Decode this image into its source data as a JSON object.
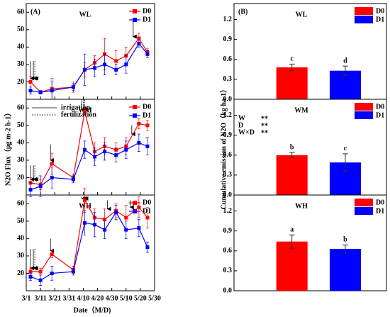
{
  "chart_data": [
    {
      "type": "line",
      "panel_label": "(A)",
      "title": "WL",
      "xlim": [
        0,
        90
      ],
      "ylim": [
        10,
        65
      ],
      "yticks": [
        20,
        30,
        40,
        50,
        60
      ],
      "x": [
        3,
        10,
        18,
        33,
        41,
        48,
        55,
        63,
        70,
        79,
        85
      ],
      "series": [
        {
          "name": "D0",
          "color": "#ff0000",
          "values": [
            20,
            14,
            16,
            17,
            27,
            31,
            36,
            32,
            35,
            45,
            37
          ],
          "errors": [
            3,
            1,
            6,
            3,
            4,
            4,
            9,
            6,
            5,
            3,
            2
          ]
        },
        {
          "name": "D1",
          "color": "#0000ff",
          "values": [
            15,
            14,
            15,
            17,
            27,
            28,
            30,
            27,
            30,
            42,
            36
          ],
          "errors": [
            2,
            1,
            5,
            2,
            9,
            5,
            6,
            3,
            5,
            2,
            2
          ]
        }
      ],
      "irrigation": [
        [
          3,
          32,
          22
        ],
        [
          5,
          32,
          22
        ],
        [
          75,
          55,
          46
        ]
      ],
      "fertilization": [
        [
          6,
          32,
          22
        ]
      ]
    },
    {
      "type": "line",
      "title": "WM",
      "ylabel": "N2O Flux（μg m-2 h-1）",
      "irrigation_label": "irrigation",
      "fertilization_label": "fertilization",
      "xlim": [
        0,
        90
      ],
      "ylim": [
        10,
        65
      ],
      "yticks": [
        20,
        30,
        40,
        50,
        60
      ],
      "x": [
        3,
        10,
        18,
        33,
        41,
        48,
        55,
        63,
        70,
        79,
        85
      ],
      "series": [
        {
          "name": "D0",
          "color": "#ff0000",
          "values": [
            17,
            16,
            28,
            20,
            58,
            35,
            38,
            36,
            38,
            51,
            50
          ],
          "errors": [
            3,
            3,
            6,
            2,
            2,
            5,
            5,
            4,
            5,
            3,
            3
          ]
        },
        {
          "name": "D1",
          "color": "#0000ff",
          "values": [
            13,
            15,
            20,
            19,
            36,
            32,
            35,
            33,
            36,
            40,
            38
          ],
          "errors": [
            4,
            6,
            6,
            2,
            5,
            5,
            5,
            4,
            5,
            5,
            5
          ]
        }
      ],
      "irrigation": [
        [
          3,
          27,
          19
        ],
        [
          5,
          27,
          19
        ],
        [
          17,
          39,
          30
        ],
        [
          39,
          65,
          59
        ],
        [
          74,
          50,
          45
        ]
      ],
      "fertilization": [
        [
          6,
          27,
          19
        ],
        [
          40,
          65,
          59
        ],
        [
          41,
          65,
          59
        ]
      ]
    },
    {
      "type": "line",
      "title": "WH",
      "xlabel": "Date（M/D)",
      "xlim": [
        0,
        90
      ],
      "ylim": [
        10,
        65
      ],
      "yticks": [
        20,
        30,
        40,
        50,
        60
      ],
      "xticks": [
        {
          "value": 0,
          "label": "3/1"
        },
        {
          "value": 10,
          "label": "3/11"
        },
        {
          "value": 20,
          "label": "3/21"
        },
        {
          "value": 30,
          "label": "3/31"
        },
        {
          "value": 40,
          "label": "4/10"
        },
        {
          "value": 50,
          "label": "4/20"
        },
        {
          "value": 60,
          "label": "4/30"
        },
        {
          "value": 70,
          "label": "5/10"
        },
        {
          "value": 80,
          "label": "5/20"
        },
        {
          "value": 90,
          "label": "5/30"
        }
      ],
      "x": [
        3,
        10,
        18,
        33,
        41,
        48,
        55,
        63,
        70,
        79,
        85
      ],
      "series": [
        {
          "name": "D0",
          "color": "#ff0000",
          "values": [
            21,
            21,
            31,
            22,
            62,
            52,
            51,
            56,
            52,
            58,
            52
          ],
          "errors": [
            2,
            2,
            2,
            2,
            7,
            5,
            6,
            4,
            7,
            6,
            6
          ]
        },
        {
          "name": "D1",
          "color": "#0000ff",
          "values": [
            18,
            16,
            20,
            21,
            49,
            48,
            45,
            55,
            45,
            46,
            35
          ],
          "errors": [
            2,
            3,
            4,
            2,
            7,
            7,
            5,
            4,
            5,
            5,
            3
          ]
        }
      ],
      "irrigation": [
        [
          3,
          34,
          23
        ],
        [
          5,
          34,
          23
        ],
        [
          17,
          40,
          33
        ],
        [
          39,
          64,
          63
        ],
        [
          57,
          62,
          57
        ],
        [
          73,
          62,
          58
        ]
      ],
      "fertilization": [
        [
          6,
          34,
          23
        ],
        [
          40,
          64,
          63
        ],
        [
          41,
          64,
          63
        ]
      ]
    },
    {
      "type": "bar",
      "panel_label": "(B)",
      "title": "WL",
      "ylim": [
        0,
        1.44
      ],
      "yticks": [
        {
          "value": 0,
          "label": "0.0"
        },
        0.3,
        0.6,
        0.9,
        1.2
      ],
      "series": [
        {
          "name": "D0",
          "color": "#ff0000",
          "values": [
            0.48
          ],
          "errors": [
            0.05
          ],
          "letters": [
            "c"
          ]
        },
        {
          "name": "D1",
          "color": "#0000ff",
          "values": [
            0.43
          ],
          "errors": [
            0.07
          ],
          "letters": [
            "d"
          ]
        }
      ]
    },
    {
      "type": "bar",
      "title": "WM",
      "ylabel": "Cumulative emission of N2O（kg ha-1）",
      "ylim": [
        0,
        1.44
      ],
      "yticks": [
        {
          "value": 0,
          "label": "0.0"
        },
        0.3,
        0.6,
        0.9,
        1.2
      ],
      "significance": [
        [
          "W",
          "**"
        ],
        [
          "D",
          "**"
        ],
        [
          "W×D",
          "**"
        ]
      ],
      "series": [
        {
          "name": "D0",
          "color": "#ff0000",
          "values": [
            0.6
          ],
          "errors": [
            0.04
          ],
          "letters": [
            "b"
          ]
        },
        {
          "name": "D1",
          "color": "#0000ff",
          "values": [
            0.49
          ],
          "errors": [
            0.13
          ],
          "letters": [
            "c"
          ]
        }
      ]
    },
    {
      "type": "bar",
      "title": "WH",
      "ylim": [
        0,
        1.44
      ],
      "yticks": [
        {
          "value": 0,
          "label": "0.0"
        },
        0.3,
        0.6,
        0.9,
        1.2
      ],
      "series": [
        {
          "name": "D0",
          "color": "#ff0000",
          "values": [
            0.74
          ],
          "errors": [
            0.1
          ],
          "letters": [
            "a"
          ]
        },
        {
          "name": "D1",
          "color": "#0000ff",
          "values": [
            0.63
          ],
          "errors": [
            0.06
          ],
          "letters": [
            "b"
          ]
        }
      ]
    }
  ]
}
